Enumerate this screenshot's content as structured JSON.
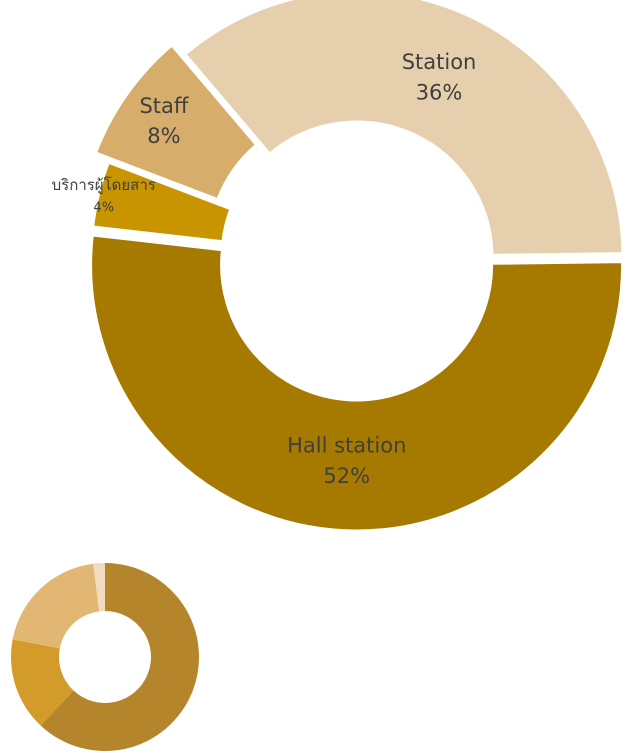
{
  "chart_data": [
    {
      "type": "pie",
      "title": "",
      "categories": [
        "Hall station",
        "บริการผู้โดยสาร",
        "Staff",
        "Station"
      ],
      "values": [
        52,
        4,
        8,
        36
      ],
      "labels": [
        "52%",
        "4%",
        "8%",
        "36%"
      ],
      "colors": [
        "#a67a00",
        "#c89400",
        "#d6ad6a",
        "#e6cfad"
      ],
      "legend": "none"
    },
    {
      "type": "pie",
      "title": "",
      "values": [
        62,
        16,
        20,
        2
      ],
      "colors": [
        "#b5852c",
        "#d29b2a",
        "#e2b774",
        "#f0dcc0"
      ],
      "legend": "none"
    }
  ]
}
